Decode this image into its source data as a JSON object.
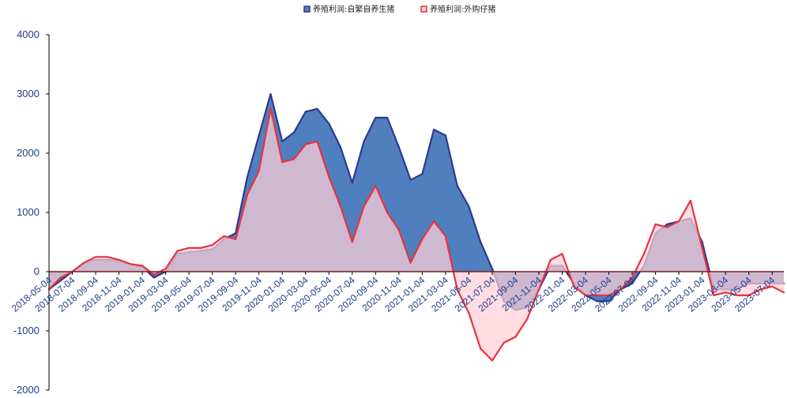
{
  "chart_data": {
    "type": "area",
    "title": "",
    "xlabel": "",
    "ylabel": "",
    "ylim": [
      -2000,
      4000
    ],
    "yticks": [
      4000,
      3000,
      2000,
      1000,
      0,
      -1000,
      -2000
    ],
    "grid": false,
    "legend_position": "top-center",
    "x_tick_labels": [
      "2018-05-04",
      "2018-07-04",
      "2018-09-04",
      "2018-11-04",
      "2019-01-04",
      "2019-03-04",
      "2019-05-04",
      "2019-07-04",
      "2019-09-04",
      "2019-11-04",
      "2020-01-04",
      "2020-03-04",
      "2020-05-04",
      "2020-07-04",
      "2020-09-04",
      "2020-11-04",
      "2021-01-04",
      "2021-03-04",
      "2021-05-04",
      "2021-07-04",
      "2021-09-04",
      "2021-11-04",
      "2022-01-04",
      "2022-03-04",
      "2022-05-04",
      "2022-07-04",
      "2022-09-04",
      "2022-11-04",
      "2023-01-04",
      "2023-03-04",
      "2023-05-04",
      "2023-07-04"
    ],
    "x": [
      "2018-05-04",
      "2018-06-04",
      "2018-07-04",
      "2018-08-04",
      "2018-09-04",
      "2018-10-04",
      "2018-11-04",
      "2018-12-04",
      "2019-01-04",
      "2019-02-04",
      "2019-03-04",
      "2019-04-04",
      "2019-05-04",
      "2019-06-04",
      "2019-07-04",
      "2019-08-04",
      "2019-09-04",
      "2019-10-04",
      "2019-11-04",
      "2019-12-04",
      "2020-01-04",
      "2020-02-04",
      "2020-03-04",
      "2020-04-04",
      "2020-05-04",
      "2020-06-04",
      "2020-07-04",
      "2020-08-04",
      "2020-09-04",
      "2020-10-04",
      "2020-11-04",
      "2020-12-04",
      "2021-01-04",
      "2021-02-04",
      "2021-03-04",
      "2021-04-04",
      "2021-05-04",
      "2021-06-04",
      "2021-07-04",
      "2021-08-04",
      "2021-09-04",
      "2021-10-04",
      "2021-11-04",
      "2021-12-04",
      "2022-01-04",
      "2022-02-04",
      "2022-03-04",
      "2022-04-04",
      "2022-05-04",
      "2022-06-04",
      "2022-07-04",
      "2022-08-04",
      "2022-09-04",
      "2022-10-04",
      "2022-11-04",
      "2022-12-04",
      "2023-01-04",
      "2023-02-04",
      "2023-03-04",
      "2023-04-04",
      "2023-05-04",
      "2023-06-04",
      "2023-07-04",
      "2023-08-04"
    ],
    "series": [
      {
        "name": "养殖利润:自繁自养生猪",
        "color": "#2e3a8c",
        "fill": "#4f7fbf",
        "values": [
          -300,
          -150,
          0,
          150,
          200,
          200,
          180,
          120,
          80,
          -100,
          0,
          300,
          330,
          350,
          380,
          550,
          650,
          1600,
          2300,
          3000,
          2200,
          2350,
          2700,
          2750,
          2500,
          2100,
          1500,
          2200,
          2600,
          2600,
          2100,
          1550,
          1650,
          2400,
          2300,
          1450,
          1100,
          500,
          50,
          -500,
          -650,
          -600,
          -300,
          100,
          100,
          -200,
          -400,
          -500,
          -500,
          -300,
          -200,
          100,
          650,
          800,
          850,
          900,
          500,
          -300,
          -300,
          -300,
          -200,
          -200,
          -200,
          -200
        ]
      },
      {
        "name": "养殖利润:外购仔猪",
        "color": "#e8333d",
        "fill": "#ffd0d8",
        "values": [
          -300,
          -100,
          0,
          150,
          250,
          250,
          200,
          130,
          100,
          -50,
          50,
          350,
          400,
          400,
          450,
          600,
          550,
          1300,
          1700,
          2750,
          1850,
          1900,
          2150,
          2200,
          1600,
          1100,
          500,
          1100,
          1450,
          1000,
          700,
          150,
          550,
          850,
          600,
          -300,
          -700,
          -1300,
          -1500,
          -1200,
          -1100,
          -800,
          -300,
          200,
          300,
          -250,
          -400,
          -400,
          -400,
          -300,
          -100,
          300,
          800,
          750,
          850,
          1200,
          400,
          -400,
          -350,
          -400,
          -400,
          -300,
          -250,
          -350
        ]
      }
    ]
  }
}
